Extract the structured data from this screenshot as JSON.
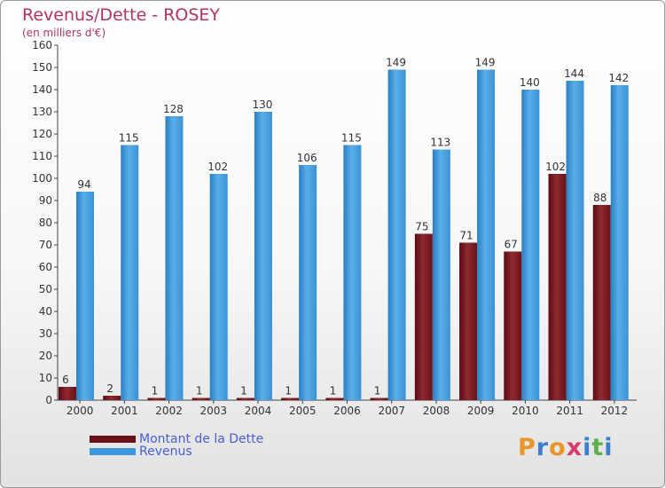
{
  "title": "Revenus/Dette - ROSEY",
  "subtitle": "(en milliers d'€)",
  "logo": {
    "text": "Proxiti",
    "letters": [
      "P",
      "r",
      "o",
      "x",
      "i",
      "t",
      "i"
    ],
    "colors": [
      "#e8952a",
      "#3a7fd0",
      "#e8952a",
      "#d83c6a",
      "#3a7fd0",
      "#5cb04a",
      "#3a7fd0"
    ]
  },
  "colors": {
    "dette": "#7a1820",
    "revenus": "#3b96dc",
    "title": "#b5325a",
    "legend_text": "#4a5ed6"
  },
  "chart_data": {
    "type": "bar",
    "categories": [
      "2000",
      "2001",
      "2002",
      "2003",
      "2004",
      "2005",
      "2006",
      "2007",
      "2008",
      "2009",
      "2010",
      "2011",
      "2012"
    ],
    "series": [
      {
        "name": "Montant de la Dette",
        "values": [
          6,
          2,
          1,
          1,
          1,
          1,
          1,
          1,
          75,
          71,
          67,
          102,
          88
        ]
      },
      {
        "name": "Revenus",
        "values": [
          94,
          115,
          128,
          102,
          130,
          106,
          115,
          149,
          113,
          149,
          140,
          144,
          142
        ]
      }
    ],
    "ylim": [
      0,
      160
    ],
    "yticks": [
      0,
      10,
      20,
      30,
      40,
      50,
      60,
      70,
      80,
      90,
      100,
      110,
      120,
      130,
      140,
      150,
      160
    ],
    "grid": false,
    "legend_position": "bottom-left"
  }
}
